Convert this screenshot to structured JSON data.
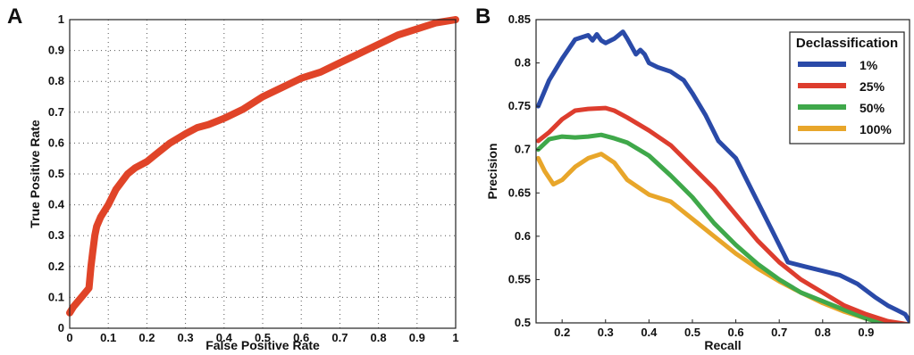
{
  "chart_data": [
    {
      "panel_label": "A",
      "type": "line",
      "title": "",
      "xlabel": "False Positive Rate",
      "ylabel": "True Positive Rate",
      "xlim": [
        0,
        1
      ],
      "ylim": [
        0,
        1
      ],
      "grid": true,
      "xticks": [
        "0",
        "0.1",
        "0.2",
        "0.3",
        "0.4",
        "0.5",
        "0.6",
        "0.7",
        "0.8",
        "0.9",
        "1"
      ],
      "yticks": [
        "0",
        "0.1",
        "0.2",
        "0.3",
        "0.4",
        "0.5",
        "0.6",
        "0.7",
        "0.8",
        "0.9",
        "1"
      ],
      "series": [
        {
          "color": "#e04428",
          "x": [
            0,
            0.01,
            0.03,
            0.05,
            0.055,
            0.06,
            0.065,
            0.07,
            0.08,
            0.1,
            0.12,
            0.15,
            0.17,
            0.2,
            0.22,
            0.26,
            0.3,
            0.33,
            0.36,
            0.4,
            0.45,
            0.5,
            0.55,
            0.6,
            0.65,
            0.7,
            0.75,
            0.8,
            0.85,
            0.9,
            0.95,
            1.0
          ],
          "y": [
            0.05,
            0.07,
            0.1,
            0.13,
            0.2,
            0.25,
            0.3,
            0.33,
            0.36,
            0.4,
            0.45,
            0.5,
            0.52,
            0.54,
            0.56,
            0.6,
            0.63,
            0.65,
            0.66,
            0.68,
            0.71,
            0.75,
            0.78,
            0.81,
            0.83,
            0.86,
            0.89,
            0.92,
            0.95,
            0.97,
            0.99,
            1.0
          ]
        }
      ]
    },
    {
      "panel_label": "B",
      "type": "line",
      "title": "",
      "xlabel": "Recall",
      "ylabel": "Precision",
      "xlim": [
        0.14,
        1.0
      ],
      "ylim": [
        0.5,
        0.85
      ],
      "grid": false,
      "xticks": [
        "0.2",
        "0.3",
        "0.4",
        "0.5",
        "0.6",
        "0.7",
        "0.8",
        "0.9"
      ],
      "yticks": [
        "0.5",
        "0.55",
        "0.6",
        "0.65",
        "0.7",
        "0.75",
        "0.8",
        "0.85"
      ],
      "legend_title": "Declassification",
      "legend_position": "top-right",
      "series": [
        {
          "name": "1%",
          "color": "#2a4aa8",
          "x": [
            0.145,
            0.17,
            0.2,
            0.23,
            0.26,
            0.27,
            0.28,
            0.29,
            0.3,
            0.32,
            0.34,
            0.35,
            0.37,
            0.38,
            0.39,
            0.4,
            0.42,
            0.45,
            0.48,
            0.5,
            0.53,
            0.56,
            0.6,
            0.64,
            0.68,
            0.72,
            0.76,
            0.8,
            0.84,
            0.88,
            0.92,
            0.95,
            0.97,
            0.99,
            1.0
          ],
          "y": [
            0.75,
            0.78,
            0.805,
            0.827,
            0.832,
            0.826,
            0.833,
            0.826,
            0.823,
            0.828,
            0.836,
            0.828,
            0.81,
            0.815,
            0.81,
            0.8,
            0.795,
            0.79,
            0.78,
            0.765,
            0.74,
            0.71,
            0.69,
            0.65,
            0.61,
            0.57,
            0.565,
            0.56,
            0.555,
            0.545,
            0.53,
            0.52,
            0.515,
            0.51,
            0.502
          ]
        },
        {
          "name": "25%",
          "color": "#dd3d2e",
          "x": [
            0.145,
            0.17,
            0.2,
            0.23,
            0.26,
            0.3,
            0.32,
            0.35,
            0.4,
            0.45,
            0.5,
            0.55,
            0.6,
            0.65,
            0.7,
            0.75,
            0.8,
            0.85,
            0.9,
            0.95,
            1.0
          ],
          "y": [
            0.71,
            0.72,
            0.735,
            0.745,
            0.747,
            0.748,
            0.745,
            0.737,
            0.722,
            0.705,
            0.68,
            0.655,
            0.625,
            0.595,
            0.57,
            0.55,
            0.535,
            0.52,
            0.51,
            0.502,
            0.498
          ]
        },
        {
          "name": "50%",
          "color": "#3fa84a",
          "x": [
            0.145,
            0.17,
            0.2,
            0.23,
            0.26,
            0.29,
            0.32,
            0.35,
            0.4,
            0.45,
            0.5,
            0.55,
            0.6,
            0.65,
            0.7,
            0.75,
            0.8,
            0.85,
            0.9,
            0.95,
            1.0
          ],
          "y": [
            0.7,
            0.712,
            0.715,
            0.714,
            0.715,
            0.717,
            0.713,
            0.708,
            0.693,
            0.67,
            0.645,
            0.615,
            0.59,
            0.568,
            0.55,
            0.535,
            0.525,
            0.515,
            0.505,
            0.498,
            0.495
          ]
        },
        {
          "name": "100%",
          "color": "#e8a62a",
          "x": [
            0.145,
            0.16,
            0.18,
            0.2,
            0.23,
            0.26,
            0.29,
            0.32,
            0.35,
            0.4,
            0.45,
            0.5,
            0.55,
            0.6,
            0.65,
            0.7,
            0.75,
            0.8,
            0.85,
            0.9,
            0.95,
            1.0
          ],
          "y": [
            0.69,
            0.675,
            0.66,
            0.665,
            0.68,
            0.69,
            0.695,
            0.685,
            0.665,
            0.648,
            0.64,
            0.62,
            0.6,
            0.58,
            0.563,
            0.548,
            0.535,
            0.523,
            0.513,
            0.505,
            0.498,
            0.495
          ]
        }
      ]
    }
  ]
}
